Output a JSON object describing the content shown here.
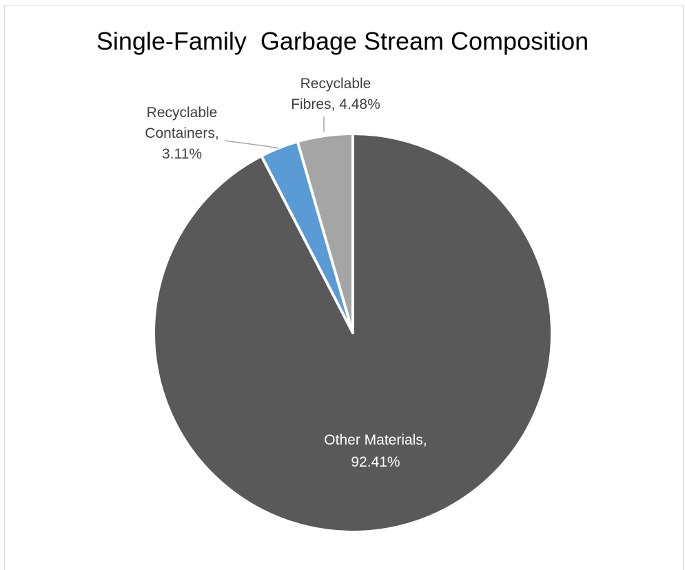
{
  "chart_data": {
    "type": "pie",
    "title": "Single-Family  Garbage Stream Composition",
    "start_angle_deg": 0,
    "direction": "clockwise",
    "slices": [
      {
        "category": "Other Materials",
        "value": 92.41,
        "value_label": "92.41%",
        "color": "#595959",
        "label_color": "#ffffff",
        "label_lines": [
          "Other Materials,",
          "92.41%"
        ]
      },
      {
        "category": "Recyclable Containers",
        "value": 3.11,
        "value_label": "3.11%",
        "color": "#5b9bd5",
        "label_color": "#404040",
        "label_lines": [
          "Recyclable",
          "Containers,",
          "3.11%"
        ]
      },
      {
        "category": "Recyclable Fibres",
        "value": 4.48,
        "value_label": "4.48%",
        "color": "#a5a5a5",
        "label_color": "#404040",
        "label_lines": [
          "Recyclable",
          "Fibres, 4.48%"
        ]
      }
    ],
    "legend": "none"
  }
}
